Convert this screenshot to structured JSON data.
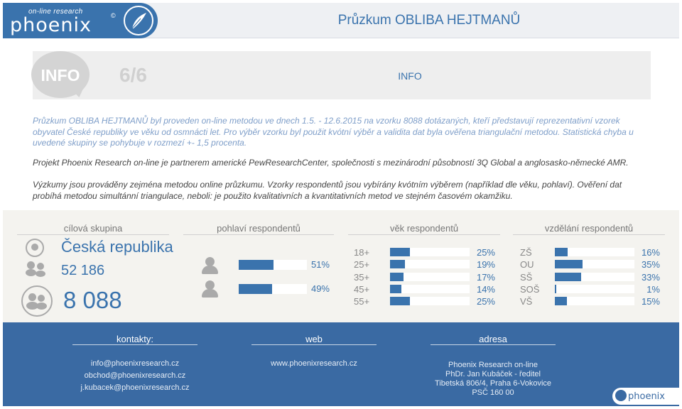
{
  "header": {
    "logo_tagline": "on-line research",
    "logo_name": "phoenix",
    "logo_copyright": "©",
    "title": "Průzkum OBLIBA HEJTMANŮ"
  },
  "info": {
    "badge": "INFO",
    "page_counter": "6/6",
    "center_label": "INFO"
  },
  "paragraphs": [
    "Průzkum OBLIBA HEJTMANŮ byl proveden on-line metodou ve dnech 1.5. - 12.6.2015 na vzorku 8088 dotázaných, kteří představují reprezentativní vzorek obyvatel České republiky ve věku od osmnácti let. Pro výběr vzorku byl použit kvótní výběr a validita dat byla ověřena triangulační metodou. Statistická chyba u uvedené skupiny se pohybuje v rozmezí +- 1,5 procenta.",
    "Projekt Phoenix Research on-line je partnerem americké PewResearchCenter, společnosti s mezinárodní působností 3Q Global a anglosasko-německé AMR.",
    "Výzkumy jsou prováděny zejména metodou online průzkumu. Vzorky respondentů jsou vybírány kvótním výběrem (například dle věku, pohlaví). Ověření dat probíhá metodou simultánní triangulace, neboli: je použito kvalitativních a kvantitativních metod ve stejném časovém okamžiku."
  ],
  "target_group": {
    "title": "cílová skupina",
    "country": "Česká republika",
    "count_small": "52 186",
    "count_big": "8 088"
  },
  "gender": {
    "title": "pohlaví respondentů",
    "rows": [
      {
        "value": 51,
        "label": "51%"
      },
      {
        "value": 49,
        "label": "49%"
      }
    ]
  },
  "age": {
    "title": "věk respondentů",
    "rows": [
      {
        "cat": "18+",
        "value": 25,
        "label": "25%"
      },
      {
        "cat": "25+",
        "value": 19,
        "label": "19%"
      },
      {
        "cat": "35+",
        "value": 17,
        "label": "17%"
      },
      {
        "cat": "45+",
        "value": 14,
        "label": "14%"
      },
      {
        "cat": "55+",
        "value": 25,
        "label": "25%"
      }
    ]
  },
  "education": {
    "title": "vzdělání respondentů",
    "rows": [
      {
        "cat": "ZŠ",
        "value": 16,
        "label": "16%"
      },
      {
        "cat": "OU",
        "value": 35,
        "label": "35%"
      },
      {
        "cat": "SŠ",
        "value": 33,
        "label": "33%"
      },
      {
        "cat": "SOŠ",
        "value": 1,
        "label": "1%"
      },
      {
        "cat": "VŠ",
        "value": 15,
        "label": "15%"
      }
    ]
  },
  "footer": {
    "contacts_title": "kontakty:",
    "contacts": [
      "info@phoenixresearch.cz",
      "obchod@phoenixresearch.cz",
      "j.kubacek@phoenixresearch.cz"
    ],
    "web_title": "web",
    "web": "www.phoenixresearch.cz",
    "address_title": "adresa",
    "address": [
      "Phoenix Research on-line",
      "PhDr. Jan Kubáček - ředitel",
      "Tibetská 806/4, Praha 6-Vokovice",
      "PSČ 160 00"
    ],
    "logo_name": "phoenix"
  },
  "colors": {
    "accent": "#3a73ad",
    "footer_bg": "#3a6aa3",
    "stats_bg": "#f4f3ef"
  }
}
